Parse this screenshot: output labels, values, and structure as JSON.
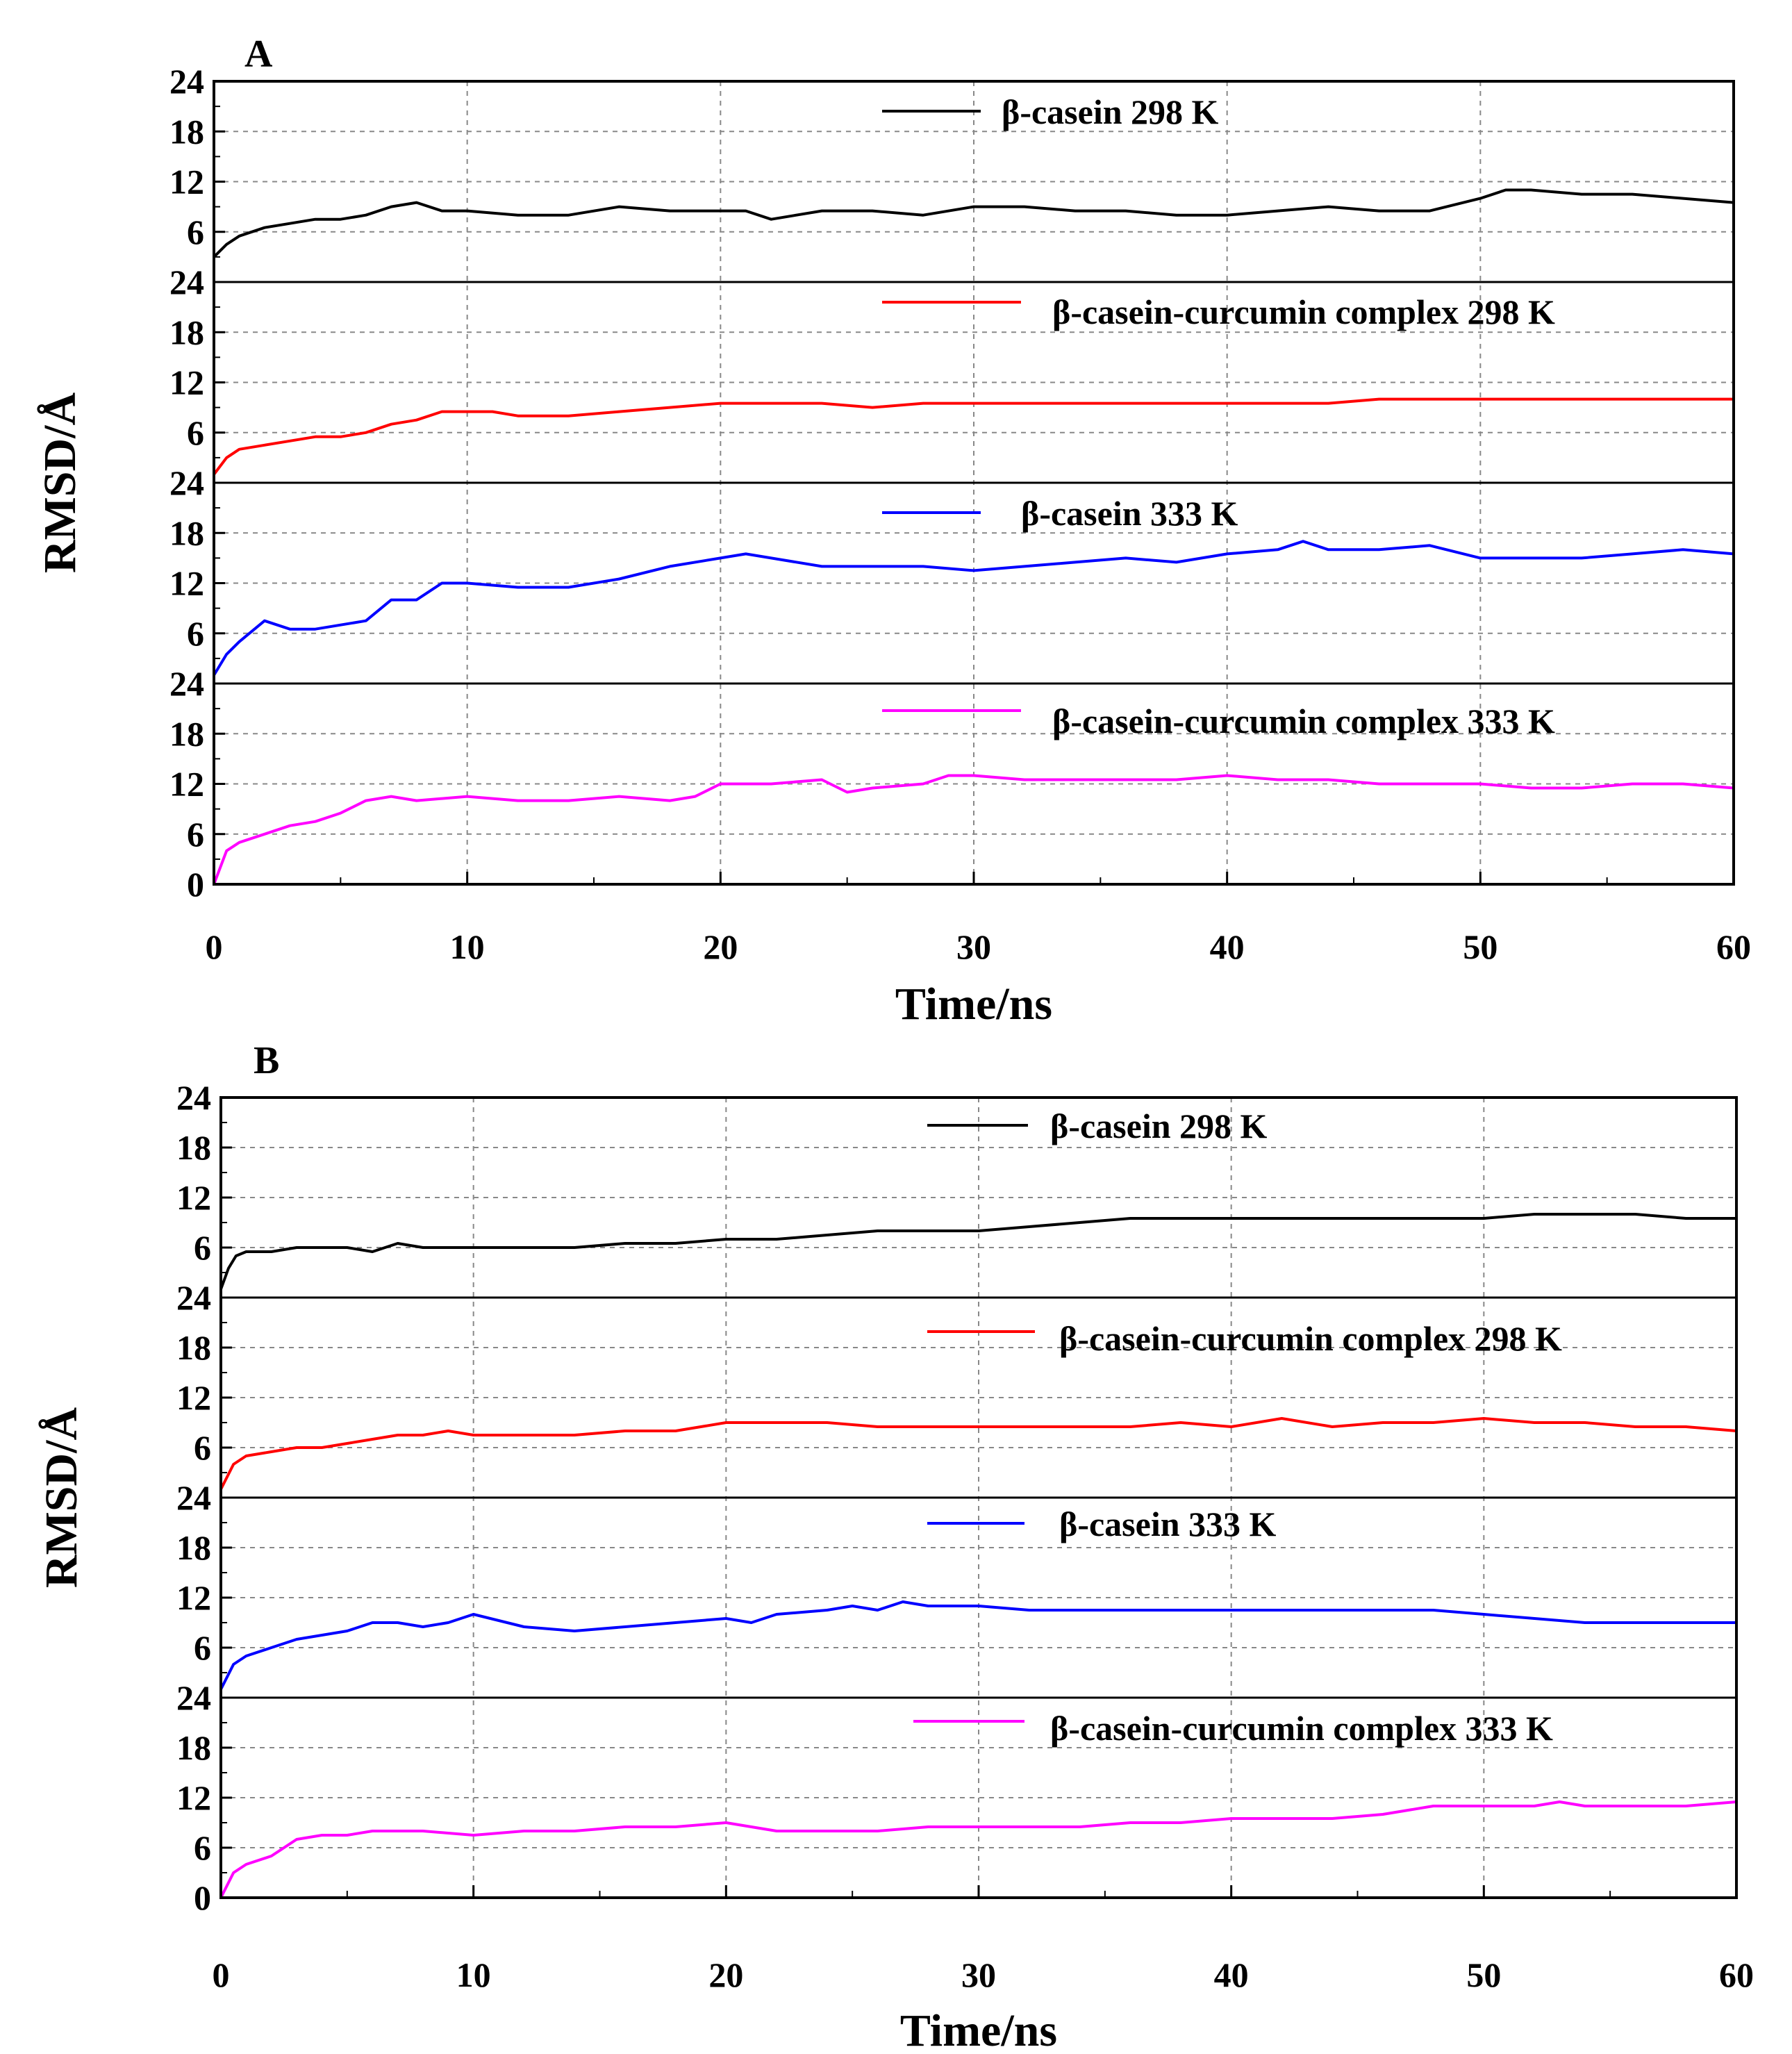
{
  "chart_data": [
    {
      "type": "line",
      "panel_label": "A",
      "xlabel": "Time/ns",
      "ylabel": "RMSD/Å",
      "xlim": [
        0,
        60
      ],
      "xticks": [
        "0",
        "10",
        "20",
        "30",
        "40",
        "50",
        "60"
      ],
      "ylim_per_subplot": [
        0,
        24
      ],
      "yticks": [
        "24",
        "18",
        "12",
        "6"
      ],
      "bottom_ytick": "0",
      "grid": "dashed",
      "series": [
        {
          "name": "β-casein  298 K",
          "color": "#000000",
          "x": [
            0,
            0.5,
            1,
            2,
            3,
            4,
            5,
            6,
            7,
            8,
            9,
            10,
            12,
            14,
            16,
            18,
            20,
            21,
            22,
            24,
            26,
            28,
            30,
            32,
            34,
            36,
            38,
            40,
            42,
            44,
            46,
            48,
            50,
            51,
            52,
            54,
            56,
            58,
            60
          ],
          "y": [
            3,
            4.5,
            5.5,
            6.5,
            7,
            7.5,
            7.5,
            8,
            9,
            9.5,
            8.5,
            8.5,
            8,
            8,
            9,
            8.5,
            8.5,
            8.5,
            7.5,
            8.5,
            8.5,
            8,
            9,
            9,
            8.5,
            8.5,
            8,
            8,
            8.5,
            9,
            8.5,
            8.5,
            10,
            11,
            11,
            10.5,
            10.5,
            10,
            9.5
          ]
        },
        {
          "name": "β-casein-curcumin complex  298 K",
          "color": "#ff0000",
          "x": [
            0,
            0.5,
            1,
            2,
            3,
            4,
            5,
            6,
            7,
            8,
            9,
            10,
            11,
            12,
            14,
            16,
            18,
            20,
            22,
            24,
            26,
            28,
            30,
            32,
            34,
            36,
            38,
            40,
            42,
            44,
            46,
            48,
            50,
            52,
            54,
            56,
            58,
            60
          ],
          "y": [
            1,
            3,
            4,
            4.5,
            5,
            5.5,
            5.5,
            6,
            7,
            7.5,
            8.5,
            8.5,
            8.5,
            8,
            8,
            8.5,
            9,
            9.5,
            9.5,
            9.5,
            9,
            9.5,
            9.5,
            9.5,
            9.5,
            9.5,
            9.5,
            9.5,
            9.5,
            9.5,
            10,
            10,
            10,
            10,
            10,
            10,
            10,
            10
          ]
        },
        {
          "name": "β-casein   333 K",
          "color": "#0000ff",
          "x": [
            0,
            0.5,
            1,
            2,
            3,
            4,
            5,
            6,
            7,
            8,
            9,
            10,
            12,
            14,
            16,
            18,
            20,
            21,
            22,
            24,
            26,
            28,
            30,
            32,
            34,
            36,
            38,
            40,
            42,
            43,
            44,
            46,
            48,
            50,
            52,
            54,
            56,
            58,
            60
          ],
          "y": [
            1,
            3.5,
            5,
            7.5,
            6.5,
            6.5,
            7,
            7.5,
            10,
            10,
            12,
            12,
            11.5,
            11.5,
            12.5,
            14,
            15,
            15.5,
            15,
            14,
            14,
            14,
            13.5,
            14,
            14.5,
            15,
            14.5,
            15.5,
            16,
            17,
            16,
            16,
            16.5,
            15,
            15,
            15,
            15.5,
            16,
            15.5
          ]
        },
        {
          "name": "β-casein-curcumin complex  333 K",
          "color": "#ff00ff",
          "x": [
            0,
            0.5,
            1,
            2,
            3,
            4,
            5,
            6,
            7,
            8,
            10,
            12,
            14,
            16,
            18,
            19,
            20,
            22,
            24,
            25,
            26,
            28,
            29,
            30,
            32,
            34,
            36,
            38,
            40,
            42,
            44,
            46,
            48,
            50,
            52,
            54,
            56,
            58,
            60
          ],
          "y": [
            0,
            4,
            5,
            6,
            7,
            7.5,
            8.5,
            10,
            10.5,
            10,
            10.5,
            10,
            10,
            10.5,
            10,
            10.5,
            12,
            12,
            12.5,
            11,
            11.5,
            12,
            13,
            13,
            12.5,
            12.5,
            12.5,
            12.5,
            13,
            12.5,
            12.5,
            12,
            12,
            12,
            11.5,
            11.5,
            12,
            12,
            11.5
          ]
        }
      ]
    },
    {
      "type": "line",
      "panel_label": "B",
      "xlabel": "Time/ns",
      "ylabel": "RMSD/Å",
      "xlim": [
        0,
        60
      ],
      "xticks": [
        "0",
        "10",
        "20",
        "30",
        "40",
        "50",
        "60"
      ],
      "ylim_per_subplot": [
        0,
        24
      ],
      "yticks": [
        "24",
        "18",
        "12",
        "6"
      ],
      "bottom_ytick": "0",
      "grid": "dashed",
      "series": [
        {
          "name": "β-casein  298 K",
          "color": "#000000",
          "x": [
            0,
            0.3,
            0.6,
            1,
            2,
            3,
            4,
            5,
            6,
            7,
            8,
            10,
            12,
            14,
            16,
            18,
            20,
            22,
            24,
            26,
            28,
            30,
            32,
            34,
            36,
            38,
            40,
            42,
            44,
            46,
            48,
            50,
            52,
            54,
            56,
            58,
            60
          ],
          "y": [
            1,
            3.5,
            5,
            5.5,
            5.5,
            6,
            6,
            6,
            5.5,
            6.5,
            6,
            6,
            6,
            6,
            6.5,
            6.5,
            7,
            7,
            7.5,
            8,
            8,
            8,
            8.5,
            9,
            9.5,
            9.5,
            9.5,
            9.5,
            9.5,
            9.5,
            9.5,
            9.5,
            10,
            10,
            10,
            9.5,
            9.5
          ]
        },
        {
          "name": "β-casein-curcumin complex  298 K",
          "color": "#ff0000",
          "x": [
            0,
            0.5,
            1,
            2,
            3,
            4,
            5,
            6,
            7,
            8,
            9,
            10,
            12,
            14,
            16,
            18,
            19,
            20,
            22,
            24,
            26,
            28,
            30,
            32,
            34,
            36,
            38,
            40,
            42,
            44,
            46,
            48,
            50,
            52,
            54,
            56,
            58,
            60
          ],
          "y": [
            1,
            4,
            5,
            5.5,
            6,
            6,
            6.5,
            7,
            7.5,
            7.5,
            8,
            7.5,
            7.5,
            7.5,
            8,
            8,
            8.5,
            9,
            9,
            9,
            8.5,
            8.5,
            8.5,
            8.5,
            8.5,
            8.5,
            9,
            8.5,
            9.5,
            8.5,
            9,
            9,
            9.5,
            9,
            9,
            8.5,
            8.5,
            8
          ]
        },
        {
          "name": "β-casein  333 K",
          "color": "#0000ff",
          "x": [
            0,
            0.5,
            1,
            2,
            3,
            4,
            5,
            6,
            7,
            8,
            9,
            10,
            12,
            14,
            16,
            18,
            20,
            21,
            22,
            24,
            25,
            26,
            27,
            28,
            30,
            32,
            34,
            36,
            38,
            40,
            42,
            44,
            46,
            48,
            50,
            52,
            54,
            56,
            58,
            60
          ],
          "y": [
            1,
            4,
            5,
            6,
            7,
            7.5,
            8,
            9,
            9,
            8.5,
            9,
            10,
            8.5,
            8,
            8.5,
            9,
            9.5,
            9,
            10,
            10.5,
            11,
            10.5,
            11.5,
            11,
            11,
            10.5,
            10.5,
            10.5,
            10.5,
            10.5,
            10.5,
            10.5,
            10.5,
            10.5,
            10,
            9.5,
            9,
            9,
            9,
            9
          ]
        },
        {
          "name": "β-casein-curcumin complex  333 K",
          "color": "#ff00ff",
          "x": [
            0,
            0.5,
            1,
            2,
            3,
            4,
            5,
            6,
            7,
            8,
            10,
            12,
            14,
            16,
            18,
            20,
            21,
            22,
            24,
            26,
            28,
            30,
            32,
            34,
            36,
            38,
            40,
            42,
            44,
            46,
            48,
            50,
            52,
            53,
            54,
            56,
            58,
            60
          ],
          "y": [
            0,
            3,
            4,
            5,
            7,
            7.5,
            7.5,
            8,
            8,
            8,
            7.5,
            8,
            8,
            8.5,
            8.5,
            9,
            8.5,
            8,
            8,
            8,
            8.5,
            8.5,
            8.5,
            8.5,
            9,
            9,
            9.5,
            9.5,
            9.5,
            10,
            11,
            11,
            11,
            11.5,
            11,
            11,
            11,
            11.5
          ]
        }
      ]
    }
  ]
}
